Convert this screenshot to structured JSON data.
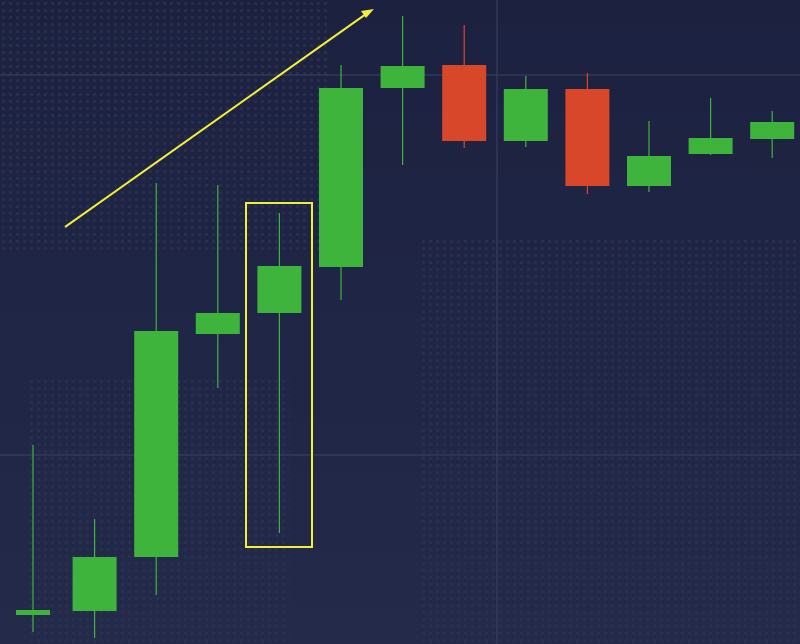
{
  "chart_data": {
    "type": "candlestick",
    "open": [
      29,
      33,
      87,
      310,
      331,
      377,
      556,
      579,
      503,
      555,
      458,
      490,
      505
    ],
    "high": [
      199,
      125,
      461,
      459,
      431,
      579,
      628,
      619,
      568,
      571,
      523,
      546,
      533
    ],
    "low": [
      12,
      6,
      49,
      256,
      111,
      344,
      479,
      496,
      497,
      450,
      452,
      489,
      486
    ],
    "close": [
      34,
      87,
      313,
      331,
      378,
      556,
      578,
      503,
      555,
      458,
      488,
      506,
      522
    ],
    "up_color": "#3fb43c",
    "down_color": "#d9472b",
    "ylim": [
      0,
      644
    ]
  }
}
